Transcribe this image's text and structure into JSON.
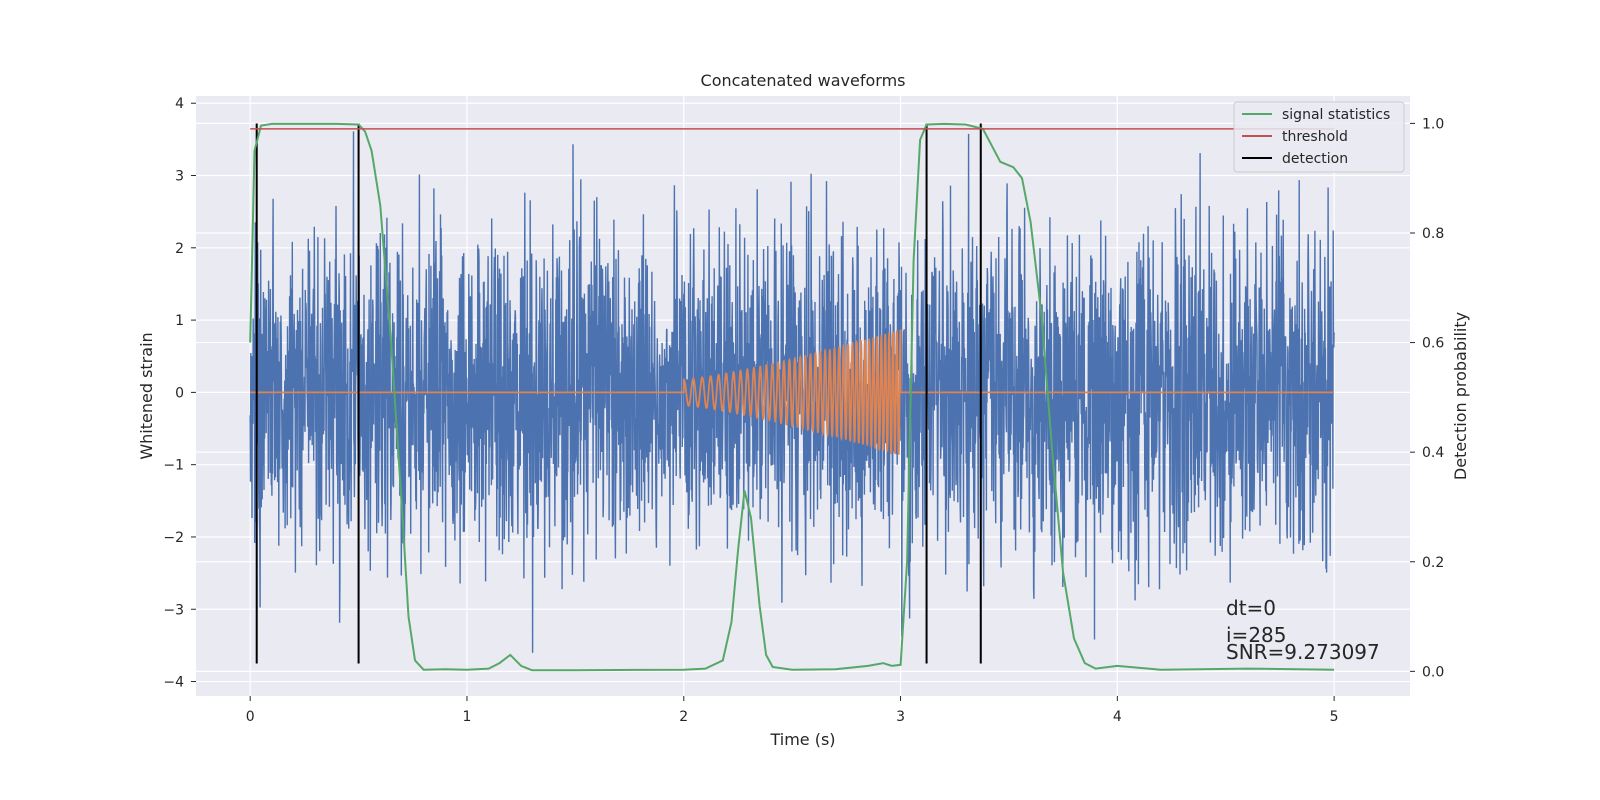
{
  "chart_data": {
    "type": "line",
    "title": "Concatenated waveforms",
    "xlabel": "Time (s)",
    "ylabel": "Whitened strain",
    "ylabel_right": "Detection probability",
    "xlim": [
      -0.25,
      5.35
    ],
    "ylim": [
      -4.2,
      4.1
    ],
    "ylim_right": [
      -0.045,
      1.05
    ],
    "x_ticks": [
      0,
      1,
      2,
      3,
      4,
      5
    ],
    "y_ticks": [
      -4,
      -3,
      -2,
      -1,
      0,
      1,
      2,
      3,
      4
    ],
    "y_ticks_right": [
      0.0,
      0.2,
      0.4,
      0.6,
      0.8,
      1.0
    ],
    "y_ticks_right_labels": [
      "0.0",
      "0.2",
      "0.4",
      "0.6",
      "0.8",
      "1.0"
    ],
    "grid": true,
    "legend_position": "top-right",
    "colors": {
      "background": "#eaeaf2",
      "strain": "#4c72b0",
      "injected": "#dd8452",
      "signal_statistics": "#55a868",
      "threshold": "#c44e52",
      "detection": "#000000"
    },
    "series": [
      {
        "name": "signal statistics",
        "axis": "right",
        "x": [
          0.0,
          0.02,
          0.05,
          0.1,
          0.2,
          0.3,
          0.4,
          0.5,
          0.53,
          0.56,
          0.6,
          0.65,
          0.7,
          0.73,
          0.76,
          0.8,
          0.9,
          1.0,
          1.1,
          1.15,
          1.2,
          1.25,
          1.3,
          1.5,
          2.0,
          2.1,
          2.18,
          2.22,
          2.25,
          2.28,
          2.31,
          2.35,
          2.38,
          2.41,
          2.5,
          2.7,
          2.85,
          2.92,
          2.96,
          3.0,
          3.03,
          3.06,
          3.09,
          3.12,
          3.2,
          3.3,
          3.38,
          3.42,
          3.46,
          3.52,
          3.56,
          3.6,
          3.65,
          3.7,
          3.75,
          3.8,
          3.85,
          3.9,
          4.0,
          4.2,
          4.6,
          5.0
        ],
        "values": [
          0.6,
          0.95,
          0.996,
          0.999,
          0.999,
          0.999,
          0.999,
          0.998,
          0.985,
          0.95,
          0.85,
          0.6,
          0.3,
          0.1,
          0.02,
          0.003,
          0.004,
          0.003,
          0.005,
          0.015,
          0.03,
          0.01,
          0.002,
          0.002,
          0.003,
          0.005,
          0.02,
          0.09,
          0.22,
          0.33,
          0.28,
          0.12,
          0.03,
          0.008,
          0.003,
          0.004,
          0.01,
          0.015,
          0.01,
          0.012,
          0.2,
          0.75,
          0.97,
          0.998,
          0.999,
          0.998,
          0.99,
          0.96,
          0.93,
          0.92,
          0.9,
          0.82,
          0.65,
          0.4,
          0.18,
          0.06,
          0.015,
          0.005,
          0.01,
          0.003,
          0.005,
          0.003
        ]
      },
      {
        "name": "threshold",
        "axis": "right",
        "x": [
          0,
          5
        ],
        "values": [
          0.99,
          0.99
        ]
      },
      {
        "name": "detection",
        "axis": "left",
        "vlines": [
          0.03,
          0.5,
          3.12,
          3.37
        ],
        "ymin": -3.75,
        "ymax": 3.72
      }
    ],
    "noise": {
      "t_start": 0,
      "t_end": 5,
      "typical_amplitude": 1.1,
      "peak_min": -3.75,
      "peak_max": 3.72
    },
    "injected_signal": {
      "t_start": 2.0,
      "t_end": 3.0,
      "amplitude_start": 0.18,
      "amplitude_end": 0.87,
      "cycles": 40
    },
    "legend": [
      "signal statistics",
      "threshold",
      "detection"
    ],
    "annotation": {
      "line1": "dt=0",
      "line2": "i=285",
      "line3": "SNR=9.273097"
    }
  }
}
